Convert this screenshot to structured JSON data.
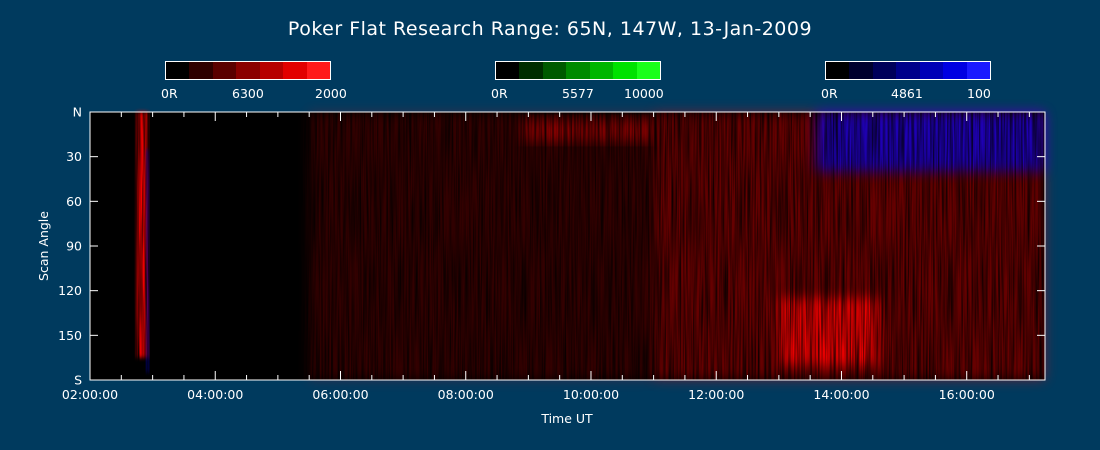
{
  "page": {
    "background": "#003a5e",
    "title": "Poker Flat Research Range: 65N, 147W, 13-Jan-2009"
  },
  "colorbars": [
    {
      "id": "red",
      "labels": [
        "0R",
        "6300",
        "2000"
      ],
      "swatches": [
        "#000000",
        "#2e0000",
        "#5a0000",
        "#8a0000",
        "#b60000",
        "#e20000",
        "#ff1a1a"
      ]
    },
    {
      "id": "green",
      "labels": [
        "0R",
        "5577",
        "10000"
      ],
      "swatches": [
        "#000000",
        "#002e00",
        "#005a00",
        "#008a00",
        "#00b600",
        "#00e200",
        "#1aff1a"
      ]
    },
    {
      "id": "blue",
      "labels": [
        "0R",
        "4861",
        "100"
      ],
      "swatches": [
        "#000000",
        "#00002e",
        "#00005a",
        "#00008a",
        "#0000b6",
        "#0000e2",
        "#1a1aff"
      ]
    }
  ],
  "chart_data": {
    "type": "heatmap",
    "title": "Poker Flat Research Range: 65N, 147W, 13-Jan-2009",
    "xlabel": "Time UT",
    "ylabel": "Scan Angle",
    "x_range_hours": [
      2.0,
      17.25
    ],
    "x_ticks": [
      {
        "value": 2,
        "label": "02:00:00"
      },
      {
        "value": 4,
        "label": "04:00:00"
      },
      {
        "value": 6,
        "label": "06:00:00"
      },
      {
        "value": 8,
        "label": "08:00:00"
      },
      {
        "value": 10,
        "label": "10:00:00"
      },
      {
        "value": 12,
        "label": "12:00:00"
      },
      {
        "value": 14,
        "label": "14:00:00"
      },
      {
        "value": 16,
        "label": "16:00:00"
      }
    ],
    "y_range": [
      0,
      180
    ],
    "y_ticks": [
      {
        "value": 0,
        "label": "N"
      },
      {
        "value": 30,
        "label": "30"
      },
      {
        "value": 60,
        "label": "60"
      },
      {
        "value": 90,
        "label": "90"
      },
      {
        "value": 120,
        "label": "120"
      },
      {
        "value": 150,
        "label": "150"
      },
      {
        "value": 180,
        "label": "S"
      }
    ],
    "channels": [
      {
        "name": "6300",
        "color": "#ff0000",
        "max": 2000
      },
      {
        "name": "5577",
        "color": "#00ff00",
        "max": 10000
      },
      {
        "name": "4861",
        "color": "#0000ff",
        "max": 100
      }
    ],
    "features": [
      {
        "channel": "6300",
        "t_start": 2.75,
        "t_end": 2.92,
        "angle_start": 0,
        "angle_end": 165,
        "intensity": 0.95
      },
      {
        "channel": "4861",
        "t_start": 2.9,
        "t_end": 2.94,
        "angle_start": 25,
        "angle_end": 175,
        "intensity": 0.8
      },
      {
        "channel": "6300",
        "t_start": 5.5,
        "t_end": 11.0,
        "angle_start": 0,
        "angle_end": 180,
        "intensity": 0.2
      },
      {
        "channel": "6300",
        "t_start": 8.9,
        "t_end": 11.0,
        "angle_start": 5,
        "angle_end": 20,
        "intensity": 0.4
      },
      {
        "channel": "6300",
        "t_start": 11.0,
        "t_end": 17.25,
        "angle_start": 0,
        "angle_end": 180,
        "intensity": 0.4
      },
      {
        "channel": "6300",
        "t_start": 13.0,
        "t_end": 14.6,
        "angle_start": 125,
        "angle_end": 170,
        "intensity": 0.85
      },
      {
        "channel": "4861",
        "t_start": 13.6,
        "t_end": 17.25,
        "angle_start": 0,
        "angle_end": 40,
        "intensity": 0.7
      }
    ]
  }
}
